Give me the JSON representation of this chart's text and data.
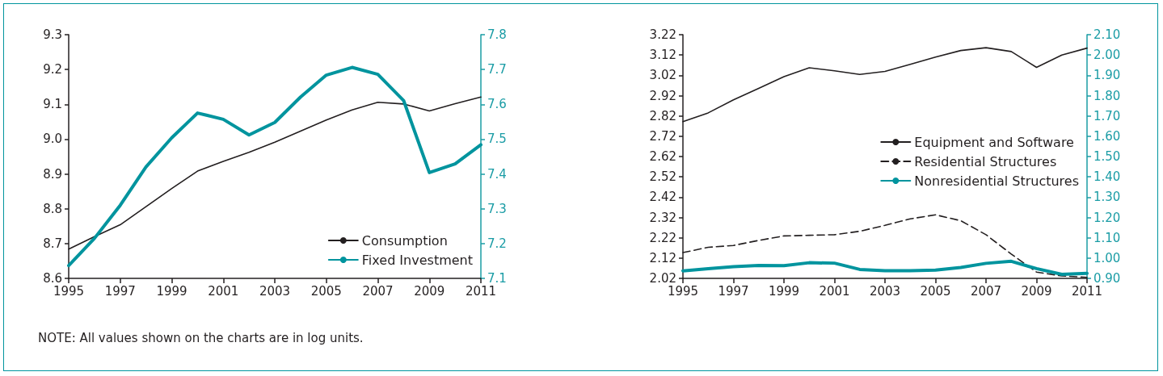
{
  "chart_data": [
    {
      "type": "line",
      "x": [
        1995,
        1996,
        1997,
        1998,
        1999,
        2000,
        2001,
        2002,
        2003,
        2004,
        2005,
        2006,
        2007,
        2008,
        2009,
        2010,
        2011
      ],
      "series": [
        {
          "name": "Consumption",
          "color": "#231f20",
          "values": [
            8.684,
            8.72,
            8.754,
            8.806,
            8.858,
            8.908,
            8.936,
            8.962,
            8.991,
            9.023,
            9.055,
            9.084,
            9.106,
            9.101,
            9.081,
            9.102,
            9.121
          ]
        },
        {
          "name": "Fixed Investment",
          "color": "#00949e",
          "axis": "y2",
          "values": [
            7.137,
            7.215,
            7.31,
            7.42,
            7.504,
            7.575,
            7.557,
            7.512,
            7.548,
            7.621,
            7.684,
            7.706,
            7.686,
            7.611,
            7.404,
            7.429,
            7.484
          ]
        }
      ],
      "xlim": [
        1995,
        2011
      ],
      "xticks": [
        1995,
        1997,
        1999,
        2001,
        2003,
        2005,
        2007,
        2009,
        2011
      ],
      "ylim": [
        8.6,
        9.3
      ],
      "yticks": [
        8.6,
        8.7,
        8.8,
        8.9,
        {
          "value": 9.0,
          "label": "9.0"
        },
        9.1,
        9.2,
        9.3
      ],
      "y2lim": [
        7.1,
        7.8
      ],
      "y2ticks": [
        7.1,
        7.2,
        7.3,
        7.4,
        7.5,
        7.6,
        7.7,
        7.8
      ],
      "grid": false,
      "legend": "bottom right",
      "marker": "none",
      "annotations": [
        "NOTE: All values shown on the charts are in log units."
      ]
    },
    {
      "type": "line",
      "x": [
        1995,
        1996,
        1997,
        1998,
        1999,
        2000,
        2001,
        2002,
        2003,
        2004,
        2005,
        2006,
        2007,
        2008,
        2009,
        2010,
        2011
      ],
      "series": [
        {
          "name": "Equipment and Software",
          "color": "#231f20",
          "values": [
            2.792,
            2.835,
            2.899,
            2.956,
            3.013,
            3.057,
            3.042,
            3.024,
            3.039,
            3.074,
            3.11,
            3.142,
            3.156,
            3.137,
            3.059,
            3.12,
            3.154
          ]
        },
        {
          "name": "Residential Structures",
          "color": "#231f20",
          "line_style": "dashed",
          "values": [
            2.147,
            2.173,
            2.182,
            2.207,
            2.229,
            2.232,
            2.235,
            2.252,
            2.281,
            2.313,
            2.333,
            2.304,
            2.235,
            2.14,
            2.051,
            2.032,
            2.025
          ]
        },
        {
          "name": "Nonresidential Structures",
          "color": "#00949e",
          "axis": "y2",
          "values": [
            0.937,
            0.948,
            0.958,
            0.964,
            0.963,
            0.977,
            0.975,
            0.944,
            0.938,
            0.938,
            0.941,
            0.954,
            0.974,
            0.984,
            0.948,
            0.92,
            0.925
          ]
        }
      ],
      "xlim": [
        1995,
        2011
      ],
      "xticks": [
        1995,
        1997,
        1999,
        2001,
        2003,
        2005,
        2007,
        2009,
        2011
      ],
      "ylim": [
        2.02,
        3.22
      ],
      "yticks": [
        2.02,
        2.12,
        2.22,
        2.32,
        2.42,
        2.52,
        2.62,
        2.72,
        2.82,
        2.92,
        3.02,
        3.12,
        3.22
      ],
      "y2lim": [
        0.9,
        2.1
      ],
      "y2ticks": [
        {
          "value": 0.9,
          "label": "0.90"
        },
        {
          "value": 1.0,
          "label": "1.00"
        },
        {
          "value": 1.1,
          "label": "1.10"
        },
        {
          "value": 1.2,
          "label": "1.20"
        },
        {
          "value": 1.3,
          "label": "1.30"
        },
        {
          "value": 1.4,
          "label": "1.40"
        },
        {
          "value": 1.5,
          "label": "1.50"
        },
        {
          "value": 1.6,
          "label": "1.60"
        },
        {
          "value": 1.7,
          "label": "1.70"
        },
        {
          "value": 1.8,
          "label": "1.80"
        },
        {
          "value": 1.9,
          "label": "1.90"
        },
        {
          "value": 2.0,
          "label": "2.00"
        },
        {
          "value": 2.1,
          "label": "2.10"
        }
      ],
      "grid": false,
      "legend": "right",
      "marker": "none"
    }
  ]
}
